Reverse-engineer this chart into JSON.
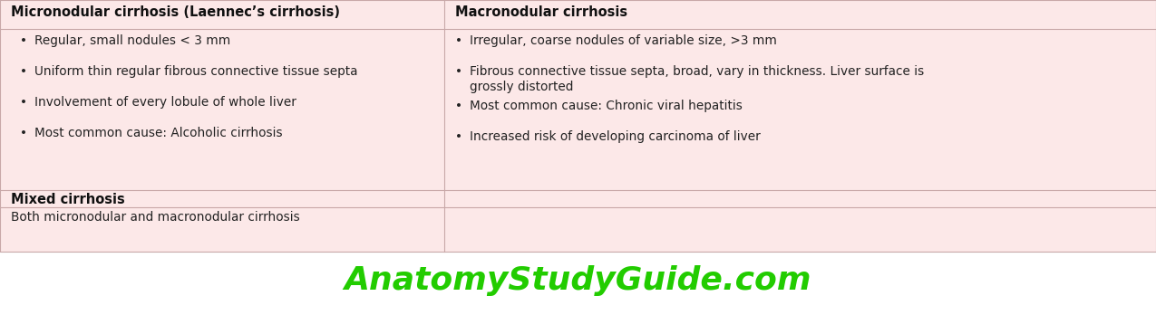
{
  "bg_color": "#fce8e8",
  "white_bg": "#ffffff",
  "text_color": "#222222",
  "bold_color": "#111111",
  "green_color": "#22cc00",
  "divider_color": "#c8a8a8",
  "fig_width": 12.75,
  "fig_height": 3.69,
  "dpi": 100,
  "left_header": "Micronodular cirrhosis (Laennec’s cirrhosis)",
  "right_header": "Macronodular cirrhosis",
  "left_bullets": [
    "Regular, small nodules < 3 mm",
    "Uniform thin regular fibrous connective tissue septa",
    "Involvement of every lobule of whole liver",
    "Most common cause: Alcoholic cirrhosis"
  ],
  "right_bullet1": "Irregular, coarse nodules of variable size, >3 mm",
  "right_bullet2_line1": "Fibrous connective tissue septa, broad, vary in thickness. Liver surface is",
  "right_bullet2_line2": "grossly distorted",
  "right_bullet3": "Most common cause: Chronic viral hepatitis",
  "right_bullet4": "Increased risk of developing carcinoma of liver",
  "mixed_header": "Mixed cirrhosis",
  "mixed_content": "Both micronodular and macronodular cirrhosis",
  "watermark": "AnatomyStudyGuide.com",
  "header_fontsize": 10.5,
  "bullet_fontsize": 9.8,
  "watermark_fontsize": 26
}
